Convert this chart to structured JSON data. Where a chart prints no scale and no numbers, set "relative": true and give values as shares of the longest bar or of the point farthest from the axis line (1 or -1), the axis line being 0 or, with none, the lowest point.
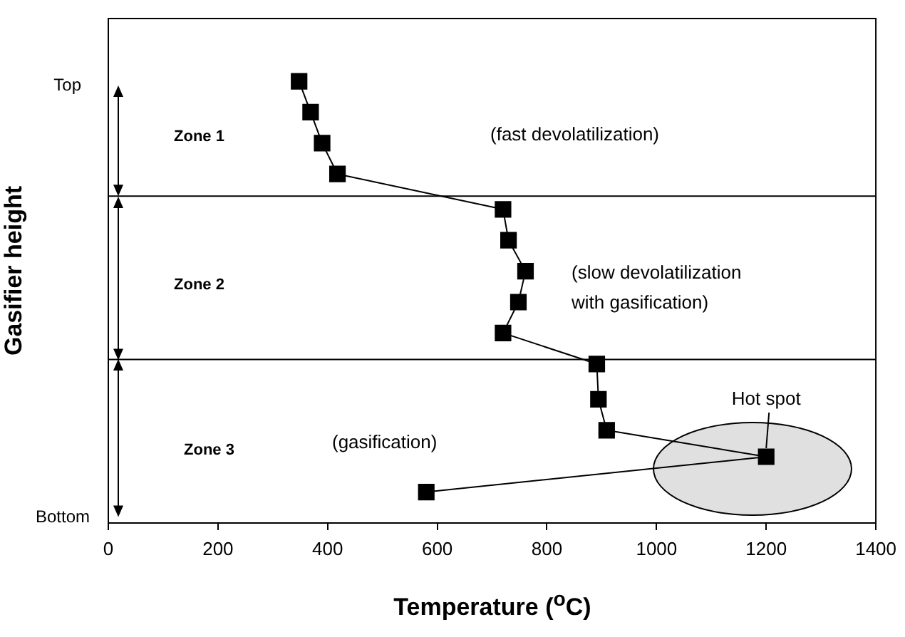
{
  "chart_data": {
    "type": "line",
    "xlabel": "Temperature ($^{o}$C)",
    "ylabel": "Gasifier height",
    "x": [
      348,
      369,
      390,
      418,
      720,
      730,
      761,
      748,
      720,
      891,
      894,
      909,
      1200,
      580
    ],
    "series": [
      {
        "color": "#000000",
        "values": [
          1,
          0.93,
          0.86,
          0.79,
          0.71,
          0.64,
          0.57,
          0.5,
          0.43,
          0.36,
          0.28,
          0.21,
          0.15,
          0.07
        ]
      }
    ],
    "relative": true,
    "xlim": [
      0,
      1400
    ],
    "xticks": [
      0,
      200,
      400,
      600,
      800,
      1000,
      1200,
      1400
    ],
    "ref_lines": [
      {
        "axis": "y",
        "value": 0.74,
        "color": "#000000"
      },
      {
        "axis": "y",
        "value": 0.37,
        "color": "#000000"
      }
    ],
    "annotations": [
      "Top",
      "Bottom",
      "Zone 1",
      "Zone 2",
      "Zone 3",
      "(fast devolatilization)",
      "(slow devolatilization\nwith gasification)",
      "(gasification)",
      {
        "text": "Hot spot",
        "x": 1200,
        "y": 0.15
      }
    ],
    "marker": "square",
    "line_style": "solid",
    "grid": false,
    "legend": false
  }
}
